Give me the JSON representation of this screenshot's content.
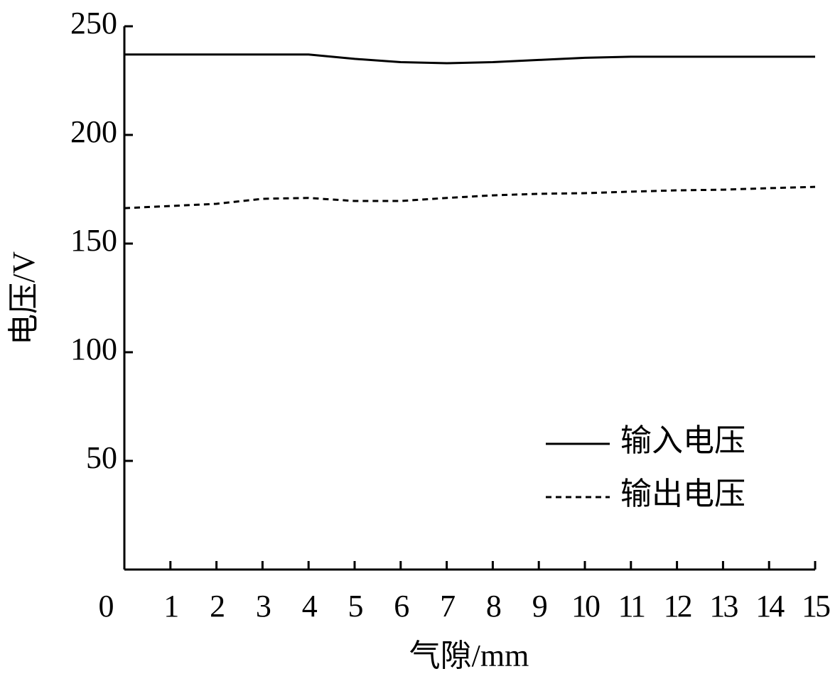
{
  "chart_data": {
    "type": "line",
    "x_label": "气隙/mm",
    "y_label": "电压/V",
    "x": [
      0,
      1,
      2,
      3,
      4,
      5,
      6,
      7,
      8,
      9,
      10,
      11,
      12,
      13,
      14,
      15
    ],
    "series": [
      {
        "name": "输入电压",
        "color": "#000000",
        "line_style": "solid",
        "values": [
          237,
          237,
          237,
          237,
          237,
          235,
          233.5,
          233,
          233.5,
          234.5,
          235.5,
          236,
          236,
          236,
          236,
          236
        ]
      },
      {
        "name": "输出电压",
        "color": "#000000",
        "line_style": "dashed",
        "values": [
          166.3,
          167.3,
          168.3,
          170.6,
          171,
          169.6,
          169.6,
          171,
          172.2,
          172.9,
          173.2,
          173.9,
          174.5,
          174.8,
          175.5,
          176.1
        ]
      }
    ],
    "xlim": [
      0,
      15
    ],
    "xticks": [
      0,
      1,
      2,
      3,
      4,
      5,
      6,
      7,
      8,
      9,
      10,
      11,
      12,
      13,
      14,
      15
    ],
    "ylim": [
      0,
      250
    ],
    "yticks": [
      50,
      100,
      150,
      200,
      250
    ],
    "grid": false,
    "legend": "lower right"
  }
}
